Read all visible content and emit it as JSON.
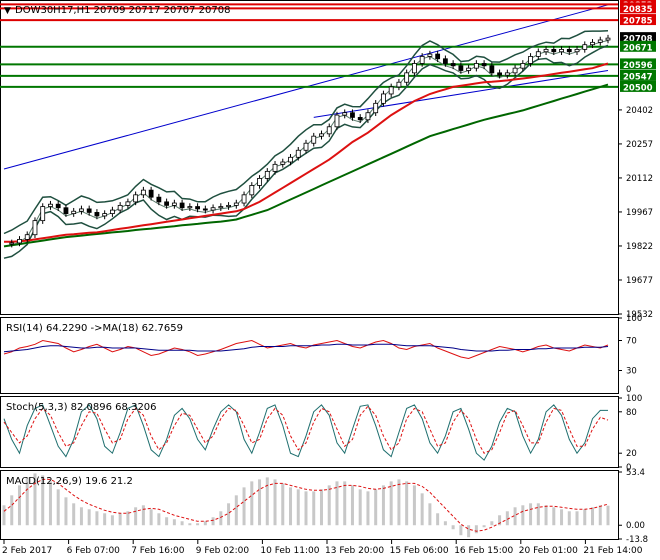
{
  "chart_data": {
    "type": "candlestick",
    "main": {
      "title": "DOW30H17,H1  20709 20717 20707 20708",
      "ylim": [
        19532,
        20862
      ],
      "yticks": [
        19532,
        19677,
        19822,
        19967,
        20112,
        20257,
        20402
      ],
      "xticks": [
        "2 Feb 2017",
        "6 Feb 07:00",
        "7 Feb 16:00",
        "9 Feb 02:00",
        "10 Feb 11:00",
        "13 Feb 20:00",
        "15 Feb 06:00",
        "16 Feb 15:00",
        "20 Feb 01:00",
        "21 Feb 14:00"
      ],
      "close": [
        19830,
        19835,
        19850,
        19870,
        19930,
        19990,
        20000,
        19985,
        19960,
        19970,
        19980,
        19965,
        19950,
        19960,
        19975,
        19995,
        20010,
        20040,
        20060,
        20030,
        20010,
        19995,
        20005,
        19985,
        19990,
        19980,
        19975,
        19985,
        19990,
        19995,
        20005,
        20040,
        20080,
        20110,
        20140,
        20170,
        20180,
        20200,
        20230,
        20260,
        20290,
        20300,
        20330,
        20380,
        20390,
        20370,
        20360,
        20390,
        20430,
        20470,
        20500,
        20520,
        20560,
        20600,
        20630,
        20640,
        20620,
        20600,
        20590,
        20570,
        20580,
        20600,
        20590,
        20560,
        20550,
        20560,
        20580,
        20600,
        20630,
        20650,
        20660,
        20650,
        20660,
        20650,
        20660,
        20680,
        20690,
        20700,
        20708
      ],
      "levels": [
        {
          "value": 20852,
          "label": "20852",
          "color": "#dd0000"
        },
        {
          "value": 20835,
          "label": "20835",
          "color": "#dd0000"
        },
        {
          "value": 20785,
          "label": "20785",
          "color": "#dd0000"
        },
        {
          "value": 20708,
          "label": "20708",
          "color": "#000000"
        },
        {
          "value": 20671,
          "label": "20671",
          "color": "#007700"
        },
        {
          "value": 20596,
          "label": "20596",
          "color": "#007700"
        },
        {
          "value": 20547,
          "label": "20547",
          "color": "#007700"
        },
        {
          "value": 20500,
          "label": "20500",
          "color": "#007700"
        }
      ],
      "trend_upper": [
        [
          0,
          20150
        ],
        [
          78,
          20850
        ]
      ],
      "trend_lower": [
        [
          40,
          20370
        ],
        [
          78,
          20570
        ]
      ],
      "ma_red": [
        19840,
        19840,
        19842,
        19845,
        19850,
        19855,
        19860,
        19865,
        19870,
        19872,
        19875,
        19878,
        19880,
        19885,
        19890,
        19895,
        19900,
        19905,
        19910,
        19915,
        19920,
        19925,
        19930,
        19935,
        19940,
        19945,
        19950,
        19955,
        19960,
        19965,
        19970,
        19980,
        19995,
        20010,
        20030,
        20050,
        20070,
        20090,
        20110,
        20130,
        20150,
        20170,
        20190,
        20215,
        20240,
        20265,
        20285,
        20305,
        20330,
        20355,
        20380,
        20400,
        20420,
        20440,
        20455,
        20470,
        20480,
        20490,
        20500,
        20505,
        20510,
        20515,
        20520,
        20522,
        20525,
        20528,
        20532,
        20536,
        20540,
        20545,
        20550,
        20555,
        20560,
        20565,
        20570,
        20575,
        20580,
        20590,
        20600
      ],
      "ma_green": [
        19820,
        19825,
        19830,
        19835,
        19840,
        19845,
        19850,
        19855,
        19860,
        19863,
        19866,
        19870,
        19873,
        19876,
        19880,
        19883,
        19886,
        19890,
        19893,
        19896,
        19900,
        19903,
        19906,
        19910,
        19913,
        19916,
        19920,
        19923,
        19926,
        19930,
        19935,
        19945,
        19955,
        19965,
        19975,
        19990,
        20005,
        20020,
        20035,
        20050,
        20065,
        20080,
        20095,
        20110,
        20125,
        20140,
        20155,
        20170,
        20185,
        20200,
        20215,
        20230,
        20245,
        20260,
        20275,
        20290,
        20300,
        20310,
        20320,
        20330,
        20340,
        20350,
        20360,
        20368,
        20376,
        20384,
        20392,
        20400,
        20410,
        20420,
        20430,
        20440,
        20450,
        20460,
        20470,
        20480,
        20490,
        20500,
        20510
      ]
    },
    "rsi": {
      "title": "RSI(14) 64.2290  ->MA(18) 62.7659",
      "ylim": [
        0,
        100
      ],
      "yticks": [
        30,
        70,
        100
      ],
      "rsi": [
        52,
        55,
        60,
        62,
        65,
        70,
        68,
        66,
        60,
        55,
        58,
        62,
        65,
        60,
        55,
        58,
        62,
        60,
        55,
        50,
        52,
        56,
        60,
        58,
        55,
        50,
        52,
        55,
        58,
        62,
        66,
        68,
        70,
        65,
        60,
        62,
        64,
        66,
        62,
        60,
        64,
        66,
        68,
        70,
        66,
        62,
        60,
        64,
        68,
        70,
        66,
        60,
        58,
        62,
        64,
        66,
        60,
        56,
        52,
        48,
        46,
        50,
        54,
        58,
        62,
        60,
        58,
        55,
        58,
        62,
        64,
        60,
        58,
        56,
        60,
        64,
        62,
        60,
        64
      ],
      "ma": [
        55,
        56,
        57,
        58,
        60,
        62,
        63,
        63,
        62,
        61,
        60,
        60,
        61,
        61,
        60,
        60,
        60,
        60,
        59,
        58,
        57,
        57,
        57,
        57,
        57,
        56,
        56,
        56,
        56,
        57,
        58,
        59,
        61,
        62,
        62,
        62,
        62,
        63,
        63,
        63,
        63,
        64,
        64,
        65,
        65,
        64,
        64,
        64,
        65,
        65,
        65,
        64,
        63,
        63,
        63,
        63,
        62,
        61,
        60,
        58,
        57,
        56,
        56,
        56,
        57,
        57,
        58,
        58,
        58,
        59,
        59,
        60,
        60,
        60,
        60,
        61,
        61,
        61,
        62
      ]
    },
    "stoch": {
      "title": "Stoch(5,3,3) 82.0896 68.3206",
      "ylim": [
        0,
        100
      ],
      "yticks": [
        0,
        20,
        80,
        100
      ],
      "k": [
        70,
        40,
        20,
        60,
        85,
        90,
        60,
        30,
        15,
        40,
        80,
        90,
        70,
        30,
        20,
        50,
        85,
        90,
        60,
        25,
        15,
        40,
        75,
        85,
        70,
        40,
        25,
        55,
        80,
        90,
        80,
        40,
        20,
        50,
        85,
        90,
        60,
        20,
        15,
        45,
        80,
        90,
        75,
        35,
        20,
        55,
        88,
        90,
        60,
        25,
        15,
        50,
        85,
        90,
        70,
        35,
        20,
        45,
        80,
        85,
        55,
        20,
        10,
        30,
        65,
        85,
        80,
        45,
        20,
        40,
        80,
        90,
        75,
        40,
        20,
        35,
        70,
        82,
        82
      ],
      "d": [
        65,
        50,
        35,
        45,
        70,
        85,
        75,
        50,
        30,
        35,
        60,
        80,
        78,
        55,
        35,
        40,
        70,
        85,
        75,
        45,
        25,
        35,
        60,
        78,
        75,
        55,
        35,
        45,
        70,
        85,
        82,
        60,
        35,
        40,
        70,
        85,
        75,
        45,
        25,
        35,
        65,
        85,
        80,
        55,
        30,
        40,
        75,
        88,
        75,
        45,
        25,
        35,
        70,
        85,
        80,
        55,
        30,
        35,
        65,
        82,
        70,
        40,
        20,
        25,
        50,
        78,
        82,
        60,
        35,
        35,
        65,
        85,
        82,
        55,
        30,
        30,
        55,
        72,
        68
      ]
    },
    "macd": {
      "title": "MACD(12,26,9) 19.6 21.2",
      "ylim": [
        -13.8,
        53.4
      ],
      "yticks": [
        -13.8,
        0.0,
        53.4
      ],
      "hist": [
        20,
        30,
        40,
        48,
        52,
        50,
        44,
        36,
        28,
        22,
        18,
        16,
        14,
        12,
        10,
        12,
        14,
        18,
        20,
        16,
        12,
        8,
        6,
        4,
        2,
        2,
        4,
        8,
        14,
        22,
        30,
        38,
        44,
        46,
        48,
        46,
        42,
        38,
        36,
        34,
        34,
        36,
        40,
        44,
        44,
        40,
        36,
        34,
        36,
        40,
        44,
        46,
        44,
        40,
        32,
        22,
        12,
        4,
        -4,
        -10,
        -12,
        -8,
        -2,
        4,
        10,
        14,
        18,
        20,
        22,
        22,
        20,
        18,
        16,
        14,
        14,
        16,
        18,
        20,
        19.6
      ],
      "signal": [
        14,
        20,
        28,
        36,
        42,
        46,
        46,
        42,
        36,
        30,
        25,
        21,
        18,
        15,
        13,
        12,
        12,
        14,
        16,
        17,
        16,
        13,
        10,
        8,
        6,
        4,
        4,
        5,
        8,
        12,
        18,
        24,
        30,
        36,
        40,
        42,
        42,
        40,
        38,
        36,
        35,
        35,
        36,
        38,
        40,
        40,
        39,
        37,
        36,
        37,
        39,
        41,
        42,
        42,
        39,
        33,
        25,
        17,
        9,
        1,
        -4,
        -6,
        -5,
        -2,
        2,
        6,
        10,
        14,
        16,
        18,
        19,
        19,
        18,
        17,
        16,
        16,
        17,
        19,
        21.2
      ]
    }
  }
}
